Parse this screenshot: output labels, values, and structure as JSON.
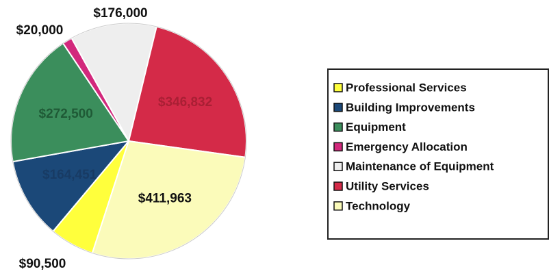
{
  "chart_data": {
    "type": "pie",
    "categories": [
      "Professional Services",
      "Building Improvements",
      "Equipment",
      "Emergency Allocation",
      "Maintenance of Equipment",
      "Utility Services",
      "Technology"
    ],
    "values": [
      90500,
      164451,
      272500,
      20000,
      176000,
      346832,
      411963
    ],
    "value_labels": [
      "$90,500",
      "$164,451",
      "$272,500",
      "$20,000",
      "$176,000",
      "$346,832",
      "$411,963"
    ],
    "colors": [
      "#ffff3c",
      "#1b4878",
      "#3b8e5c",
      "#d2287c",
      "#eeeeee",
      "#d42a48",
      "#fbfbba"
    ],
    "legend": "right"
  }
}
